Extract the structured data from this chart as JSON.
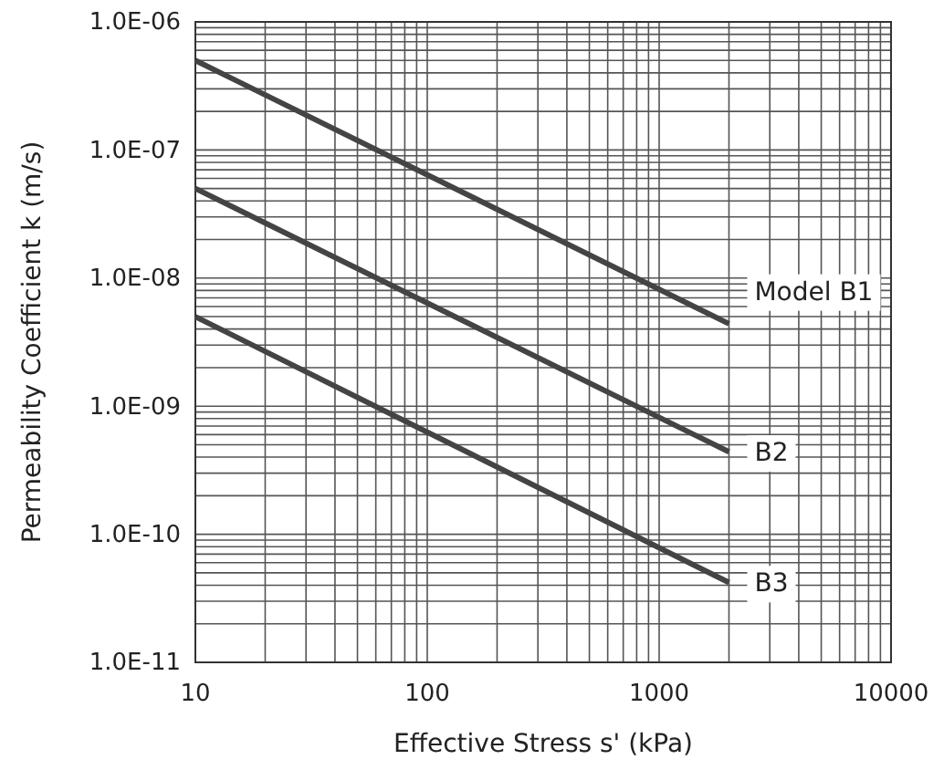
{
  "chart_data": {
    "type": "line",
    "xlabel": "Effective Stress s' (kPa)",
    "ylabel": "Permeability Coefficient k (m/s)",
    "log": "xy",
    "grid": true,
    "legend": false,
    "marker": "none",
    "line_style": "solid",
    "xlim": [
      10,
      10000
    ],
    "xticks": [
      10,
      100,
      1000,
      10000
    ],
    "ylim": [
      1e-11,
      1e-06
    ],
    "yticks": [
      {
        "value": 1e-11,
        "label": "1.0E-11"
      },
      {
        "value": 1e-10,
        "label": "1.0E-10"
      },
      {
        "value": 1e-09,
        "label": "1.0E-09"
      },
      {
        "value": 1e-08,
        "label": "1.0E-08"
      },
      {
        "value": 1e-07,
        "label": "1.0E-07"
      },
      {
        "value": 1e-06,
        "label": "1.0E-06"
      }
    ],
    "x": [
      10,
      2000
    ],
    "series": [
      {
        "name": "Model B1",
        "color": "#444444",
        "values": [
          5e-07,
          4.4e-09
        ]
      },
      {
        "name": "B2",
        "color": "#444444",
        "values": [
          5e-08,
          4.4e-10
        ]
      },
      {
        "name": "B3",
        "color": "#444444",
        "values": [
          5e-09,
          4.2e-11
        ]
      }
    ]
  }
}
